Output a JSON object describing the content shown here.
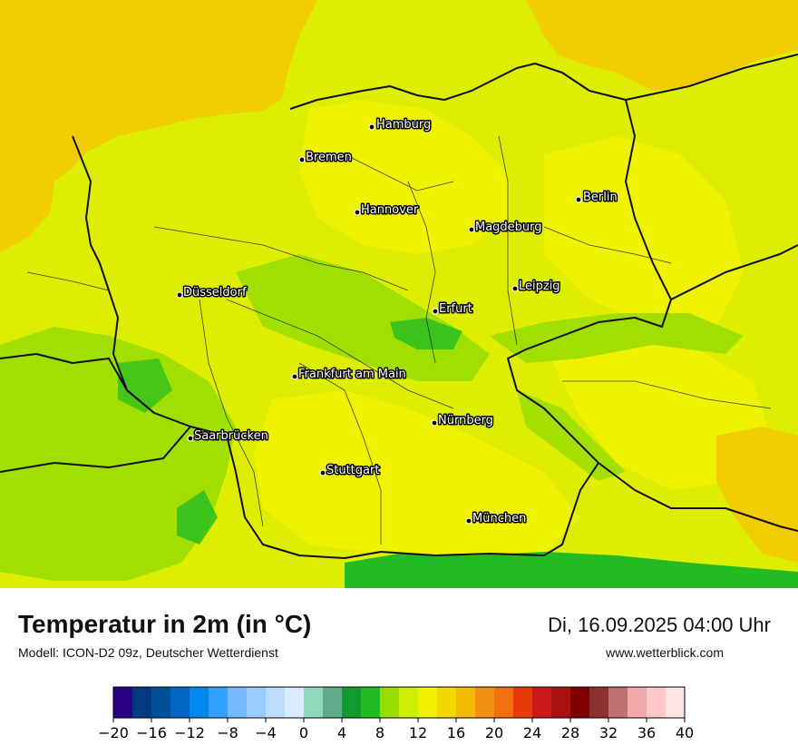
{
  "map": {
    "cities": [
      {
        "name": "Hamburg"
      },
      {
        "name": "Bremen"
      },
      {
        "name": "Berlin"
      },
      {
        "name": "Hannover"
      },
      {
        "name": "Magdeburg"
      },
      {
        "name": "Düsseldorf"
      },
      {
        "name": "Leipzig"
      },
      {
        "name": "Erfurt"
      },
      {
        "name": "Frankfurt am Main"
      },
      {
        "name": "Nürnberg"
      },
      {
        "name": "Saarbrücken"
      },
      {
        "name": "Stuttgart"
      },
      {
        "name": "München"
      }
    ],
    "colors": {
      "sea": "#f0cc00",
      "land_base": "#ddee00",
      "land_warm": "#f2f200",
      "land_green": "#99dd00",
      "land_darkgreen": "#22bb22",
      "land_orange": "#f0cc00",
      "border": "#111111"
    }
  },
  "footer": {
    "title": "Temperatur in 2m (in °C)",
    "model": "Modell: ICON-D2 09z, Deutscher Wetterdienst",
    "datetime": "Di, 16.09.2025 04:00 Uhr",
    "website": "www.wetterblick.com"
  },
  "legend": {
    "colors": [
      "#2b0080",
      "#003a80",
      "#004f99",
      "#0066c4",
      "#0088ee",
      "#33a0ff",
      "#77bbff",
      "#99ccff",
      "#bbddff",
      "#d9ebff",
      "#8fd9bb",
      "#5faa88",
      "#119933",
      "#22bb22",
      "#99dd00",
      "#ccee00",
      "#f2f200",
      "#f0d800",
      "#f0bb00",
      "#f09010",
      "#f07010",
      "#e83a0a",
      "#cc1a1a",
      "#aa1010",
      "#800000",
      "#8b3333",
      "#c07070",
      "#f0a8a8",
      "#ffc8c8",
      "#ffe4e4"
    ],
    "ticks": [
      "−20",
      "−16",
      "−12",
      "−8",
      "−4",
      "0",
      "4",
      "8",
      "12",
      "16",
      "20",
      "24",
      "28",
      "32",
      "36",
      "40"
    ]
  }
}
